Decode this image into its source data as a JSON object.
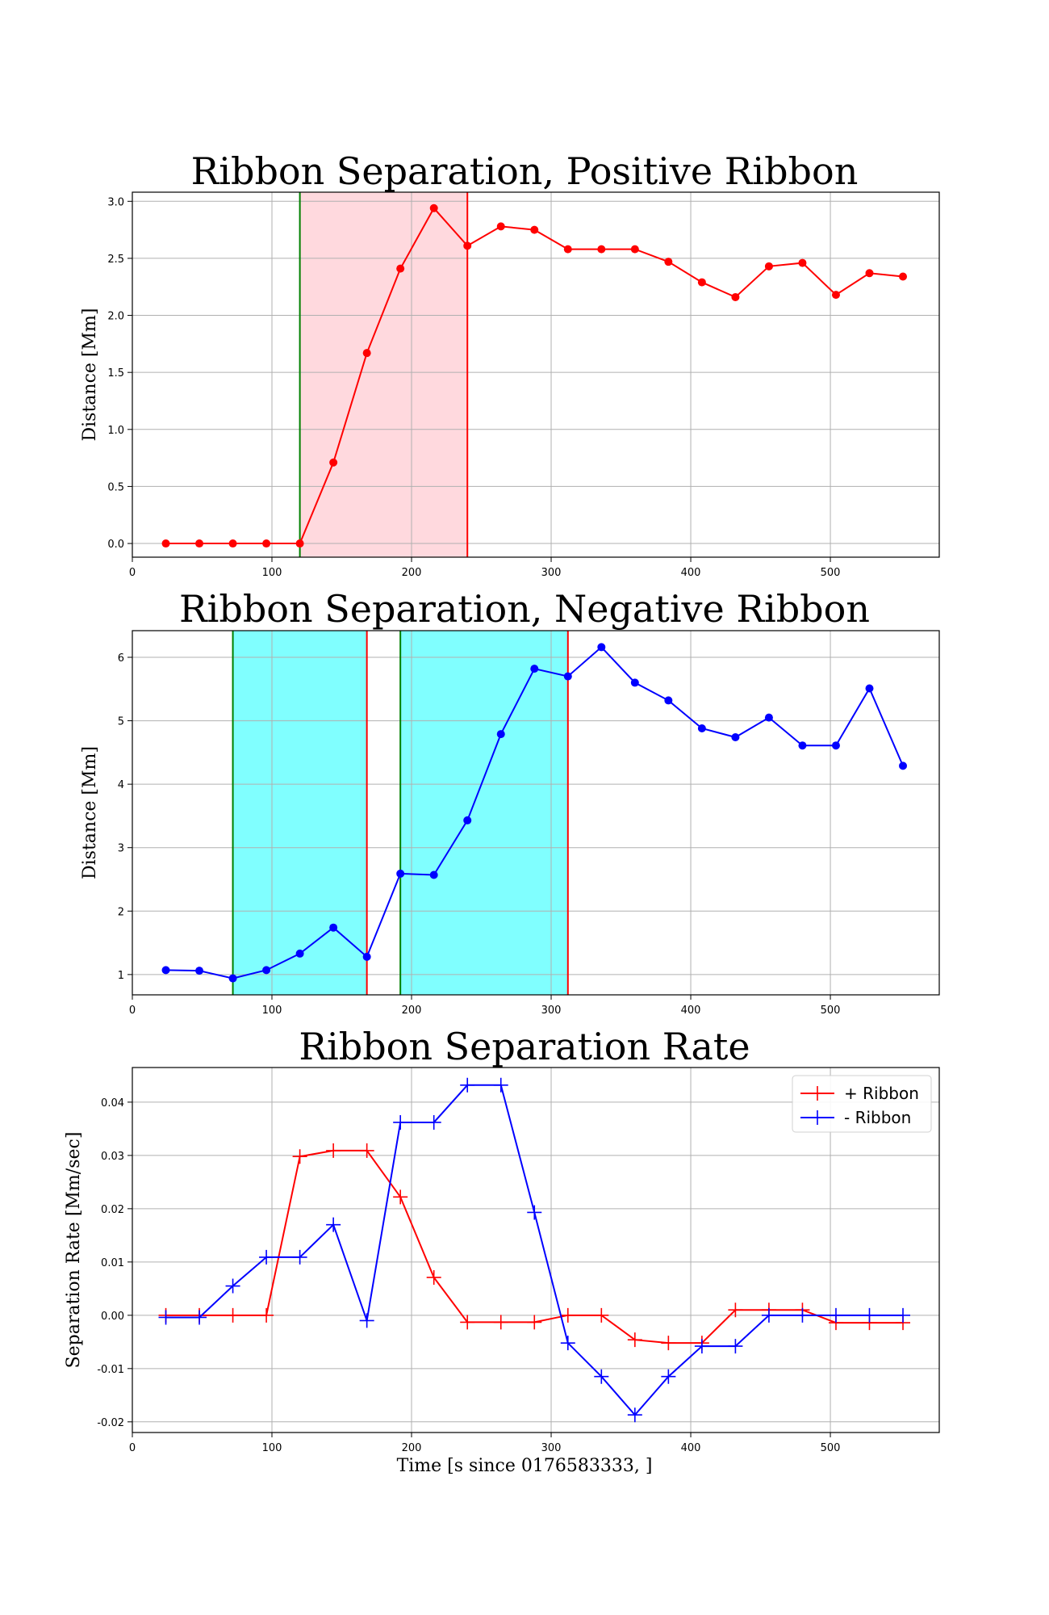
{
  "colors": {
    "positive": "#ff0000",
    "negative": "#0000ff",
    "positive_span": "#ffd9de",
    "negative_span": "#80ffff",
    "start_line": "#008000",
    "end_line": "#ff0000",
    "grid": "#b0b0b0"
  },
  "chart_data": [
    {
      "type": "line",
      "title": "Ribbon Separation, Positive Ribbon",
      "xlabel": "",
      "ylabel": "Distance [Mm]",
      "xlim": [
        0,
        578
      ],
      "ylim": [
        -0.12,
        3.08
      ],
      "xticks": [
        0,
        100,
        200,
        300,
        400,
        500
      ],
      "yticks": [
        0.0,
        0.5,
        1.0,
        1.5,
        2.0,
        2.5,
        3.0
      ],
      "ytick_format": 1,
      "grid": true,
      "spans": [
        {
          "start": 120,
          "end": 240
        }
      ],
      "series": [
        {
          "color_key": "positive",
          "marker": "circle",
          "x": [
            24,
            48,
            72,
            96,
            120,
            144,
            168,
            192,
            216,
            240,
            264,
            288,
            312,
            336,
            360,
            384,
            408,
            432,
            456,
            480,
            504,
            528,
            552
          ],
          "y": [
            0,
            0,
            0,
            0,
            0,
            0.71,
            1.67,
            2.41,
            2.94,
            2.61,
            2.78,
            2.75,
            2.58,
            2.58,
            2.58,
            2.47,
            2.29,
            2.16,
            2.43,
            2.46,
            2.18,
            2.37,
            2.34
          ]
        }
      ]
    },
    {
      "type": "line",
      "title": "Ribbon Separation, Negative Ribbon",
      "xlabel": "",
      "ylabel": "Distance [Mm]",
      "xlim": [
        0,
        578
      ],
      "ylim": [
        0.68,
        6.42
      ],
      "xticks": [
        0,
        100,
        200,
        300,
        400,
        500
      ],
      "yticks": [
        1,
        2,
        3,
        4,
        5,
        6
      ],
      "ytick_format": 0,
      "grid": true,
      "spans": [
        {
          "start": 72,
          "end": 168
        },
        {
          "start": 192,
          "end": 312
        }
      ],
      "series": [
        {
          "color_key": "negative",
          "marker": "circle",
          "x": [
            24,
            48,
            72,
            96,
            120,
            144,
            168,
            192,
            216,
            240,
            264,
            288,
            312,
            336,
            360,
            384,
            408,
            432,
            456,
            480,
            504,
            528,
            552
          ],
          "y": [
            1.07,
            1.06,
            0.94,
            1.07,
            1.33,
            1.74,
            1.28,
            2.59,
            2.57,
            3.43,
            4.79,
            5.82,
            5.7,
            6.16,
            5.6,
            5.32,
            4.88,
            4.74,
            5.05,
            4.61,
            4.61,
            5.51,
            4.29
          ]
        }
      ]
    },
    {
      "type": "line",
      "title": "Ribbon Separation Rate",
      "xlabel": "Time [s since 0176583333, ]",
      "ylabel": "Separation Rate [Mm/sec]",
      "xlim": [
        0,
        578
      ],
      "ylim": [
        -0.022,
        0.0465
      ],
      "xticks": [
        0,
        100,
        200,
        300,
        400,
        500
      ],
      "yticks": [
        -0.02,
        -0.01,
        0.0,
        0.01,
        0.02,
        0.03,
        0.04
      ],
      "ytick_format": 2,
      "grid": true,
      "legend": "top-right",
      "spans": [],
      "series": [
        {
          "name": "+ Ribbon",
          "color_key": "positive",
          "marker": "plus",
          "x": [
            24,
            48,
            72,
            96,
            120,
            144,
            168,
            192,
            216,
            240,
            264,
            288,
            312,
            336,
            360,
            384,
            408,
            432,
            456,
            480,
            504,
            528,
            552
          ],
          "y": [
            0.0,
            0.0,
            0.0,
            0.0,
            0.0298,
            0.0309,
            0.0309,
            0.0222,
            0.0071,
            -0.0013,
            -0.0013,
            -0.0013,
            0.0,
            0.0,
            -0.0046,
            -0.0052,
            -0.0052,
            0.001,
            0.001,
            0.001,
            -0.0014,
            -0.0014,
            -0.0014
          ]
        },
        {
          "name": "- Ribbon",
          "color_key": "negative",
          "marker": "plus",
          "x": [
            24,
            48,
            72,
            96,
            120,
            144,
            168,
            192,
            216,
            240,
            264,
            288,
            312,
            336,
            360,
            384,
            408,
            432,
            456,
            480,
            504,
            528,
            552
          ],
          "y": [
            -0.0004,
            -0.0004,
            0.0055,
            0.0109,
            0.0109,
            0.017,
            -0.001,
            0.0362,
            0.0362,
            0.0432,
            0.0432,
            0.0193,
            -0.0052,
            -0.0115,
            -0.0187,
            -0.0115,
            -0.0058,
            -0.0058,
            0.0,
            0.0,
            0.0,
            0.0,
            0.0
          ]
        }
      ]
    }
  ]
}
